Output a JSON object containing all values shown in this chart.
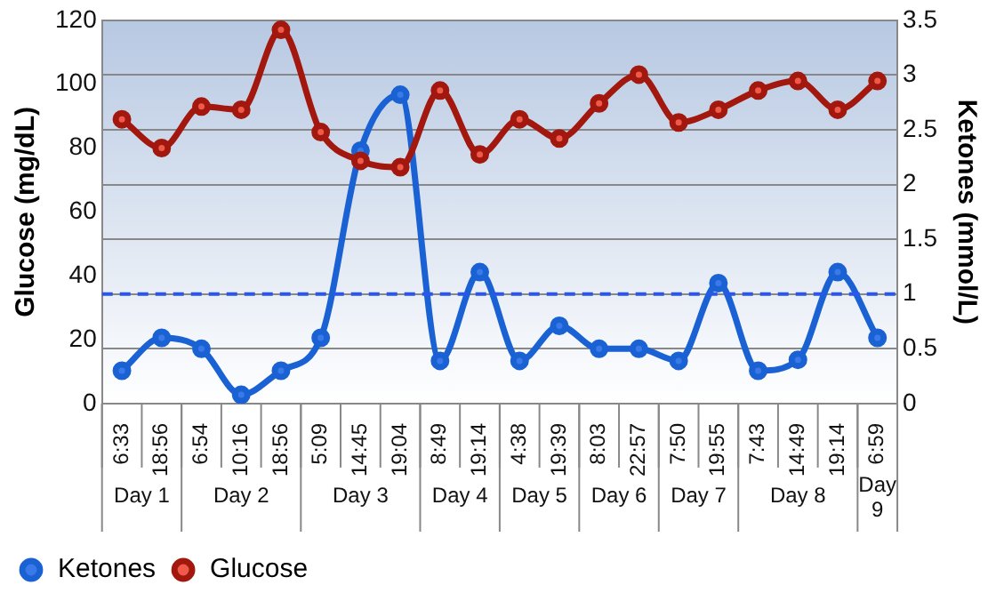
{
  "chart_data": {
    "type": "line",
    "ylabel": "Glucose (mg/dL)",
    "y2label": "Ketones (mmol/L)",
    "categories": [
      "6:33",
      "18:56",
      "6:54",
      "10:16",
      "18:56",
      "5:09",
      "14:45",
      "19:04",
      "8:49",
      "19:14",
      "4:38",
      "19:39",
      "8:03",
      "22:57",
      "7:50",
      "19:55",
      "7:43",
      "14:49",
      "19:14",
      "6:59"
    ],
    "series": [
      {
        "name": "Ketones",
        "color": "#1a62d4",
        "axis": "y2",
        "values": [
          0.3,
          0.6,
          0.5,
          0.08,
          0.3,
          0.6,
          2.31,
          2.82,
          0.39,
          1.2,
          0.39,
          0.71,
          0.5,
          0.5,
          0.39,
          1.1,
          0.3,
          0.4,
          1.2,
          0.6
        ]
      },
      {
        "name": "Glucose",
        "color": "#a3180e",
        "axis": "y",
        "values": [
          89,
          80,
          93,
          92,
          117,
          85,
          76,
          74,
          98,
          78,
          89,
          83,
          94,
          103,
          88,
          92,
          98,
          101,
          92,
          101
        ]
      }
    ],
    "ylim": [
      0,
      120
    ],
    "yticks": [
      0,
      20,
      40,
      60,
      80,
      100,
      120
    ],
    "y2lim": [
      0,
      3.5
    ],
    "y2ticks": [
      0,
      0.5,
      1,
      1.5,
      2,
      2.5,
      3,
      3.5
    ],
    "grid": "y2",
    "legend": "bottom left",
    "marker": "circle",
    "line_style": "solid",
    "ref_lines": [
      {
        "axis": "y2",
        "value": 1,
        "color": "#2a55ee",
        "line_style": "dashed"
      }
    ],
    "annotations": [
      "Day 1",
      "Day 2",
      "Day 3",
      "Day 4",
      "Day 5",
      "Day 6",
      "Day 7",
      "Day 8",
      "Day 9"
    ]
  }
}
